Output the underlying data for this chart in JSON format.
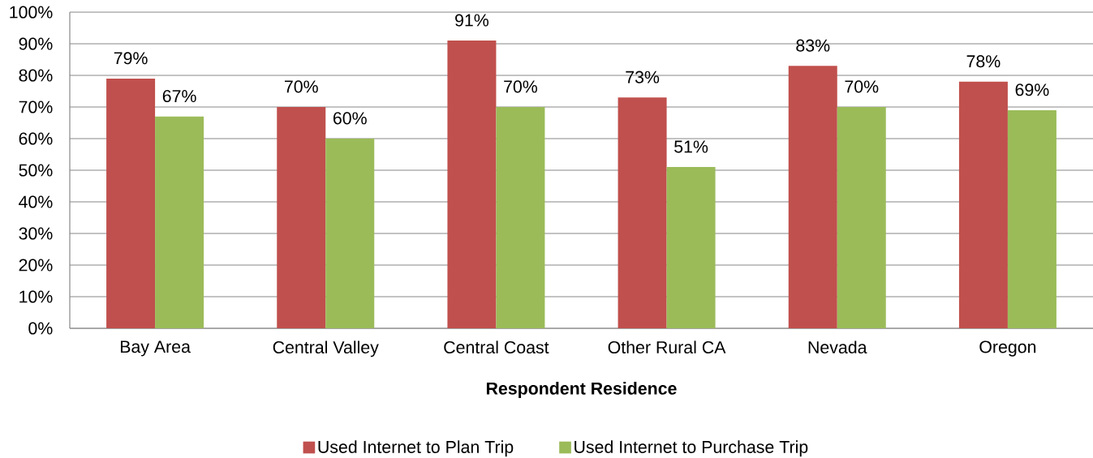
{
  "chart_data": {
    "type": "bar",
    "categories": [
      "Bay Area",
      "Central Valley",
      "Central Coast",
      "Other Rural CA",
      "Nevada",
      "Oregon"
    ],
    "xlabel": "Respondent Residence",
    "series": [
      {
        "name": "Used Internet to Plan Trip",
        "color": "#c0504d",
        "values": [
          79,
          70,
          91,
          73,
          83,
          78
        ],
        "value_labels": [
          "79%",
          "70%",
          "91%",
          "73%",
          "83%",
          "78%"
        ]
      },
      {
        "name": "Used Internet to Purchase Trip",
        "color": "#9bbb59",
        "values": [
          67,
          60,
          70,
          51,
          70,
          69
        ],
        "value_labels": [
          "67%",
          "60%",
          "70%",
          "51%",
          "70%",
          "69%"
        ]
      }
    ],
    "ylim": [
      0,
      100
    ],
    "yticks": [
      {
        "value": 0,
        "label": "0%"
      },
      {
        "value": 10,
        "label": "10%"
      },
      {
        "value": 20,
        "label": "20%"
      },
      {
        "value": 30,
        "label": "30%"
      },
      {
        "value": 40,
        "label": "40%"
      },
      {
        "value": 50,
        "label": "50%"
      },
      {
        "value": 60,
        "label": "60%"
      },
      {
        "value": 70,
        "label": "70%"
      },
      {
        "value": 80,
        "label": "80%"
      },
      {
        "value": 90,
        "label": "90%"
      },
      {
        "value": 100,
        "label": "100%"
      }
    ],
    "grid": "y",
    "legend": "bottom"
  }
}
